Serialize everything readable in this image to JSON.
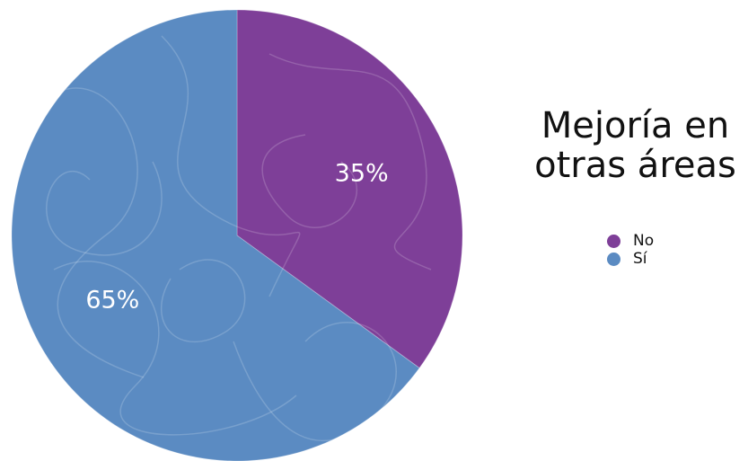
{
  "chart_data": {
    "type": "pie",
    "title_lines": [
      "Mejoría en",
      "otras áreas"
    ],
    "slices": [
      {
        "name": "No",
        "value": 35,
        "label": "35%",
        "color": "#7e3f98"
      },
      {
        "name": "Sí",
        "value": 65,
        "label": "65%",
        "color": "#5b8bc2"
      }
    ],
    "legend": {
      "placement": "right",
      "items": [
        {
          "label": "No",
          "color": "#7e3f98"
        },
        {
          "label": "Sí",
          "color": "#5b8bc2"
        }
      ]
    }
  }
}
